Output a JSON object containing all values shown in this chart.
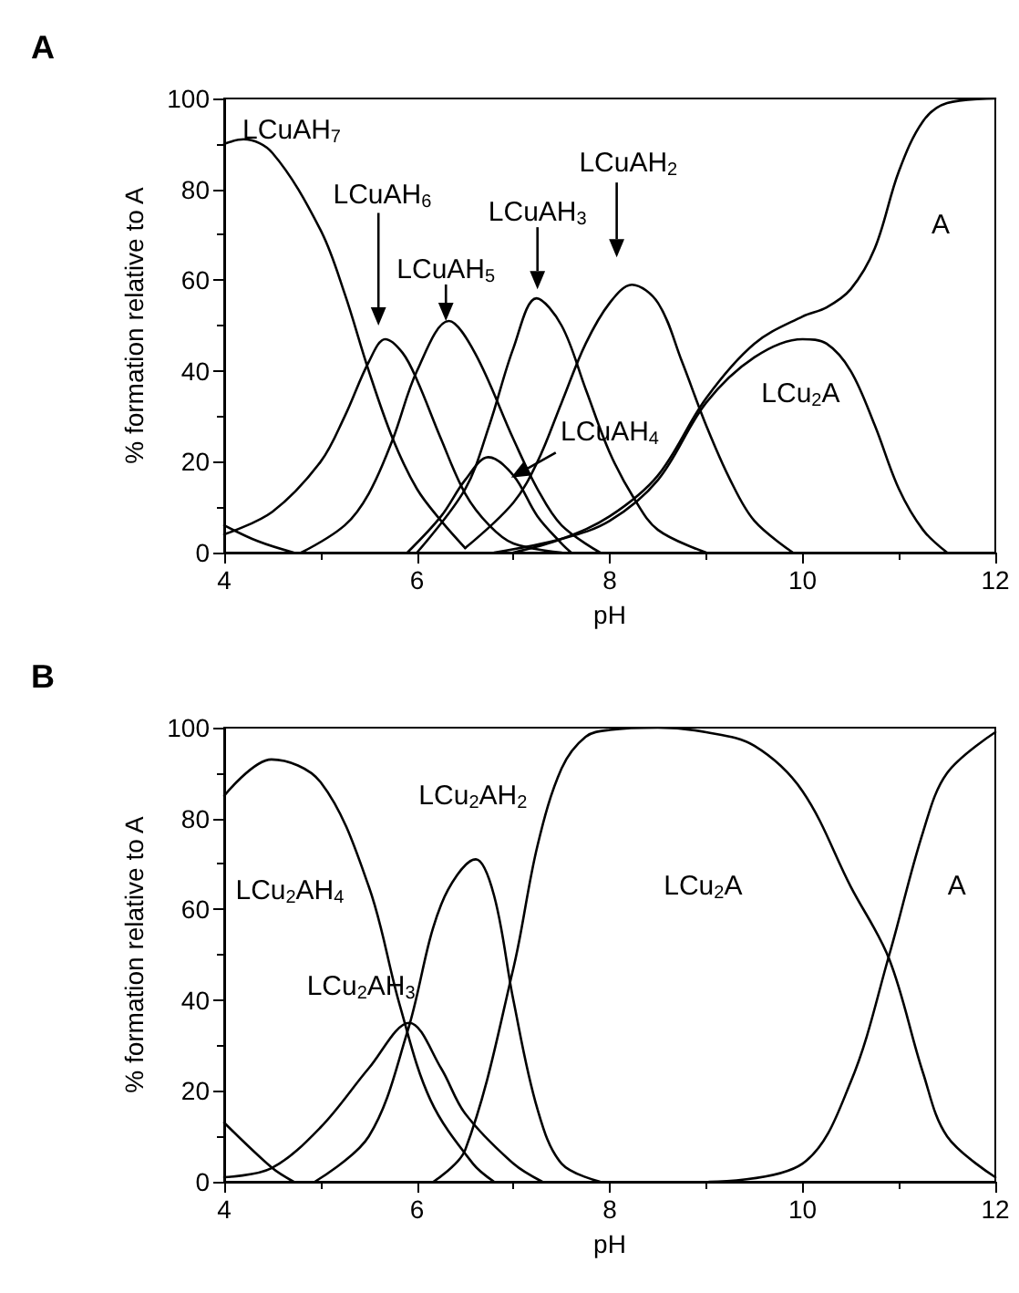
{
  "chart_data": [
    {
      "type": "line",
      "title": "A",
      "xlabel": "pH",
      "ylabel": "% formation relative to A",
      "xlim": [
        4,
        12
      ],
      "xticks": [
        4,
        6,
        8,
        10,
        12
      ],
      "ylim": [
        0,
        100
      ],
      "yticks": [
        0,
        20,
        40,
        60,
        80,
        100
      ],
      "marker": "none",
      "line_style": "solid",
      "series": [
        {
          "color": "#000000",
          "x": [
            4,
            4.35,
            4.72
          ],
          "values": [
            6,
            2.5,
            0
          ]
        },
        {
          "color": "#000000",
          "x": [
            4,
            4.2,
            4.5,
            5,
            5.25,
            5.5,
            5.75,
            6,
            6.25,
            6.5
          ],
          "values": [
            90,
            91,
            88,
            71,
            57,
            40,
            25,
            14,
            7,
            1
          ]
        },
        {
          "color": "#000000",
          "x": [
            4,
            4.5,
            5,
            5.25,
            5.5,
            5.67,
            5.85,
            6,
            6.25,
            6.5,
            6.75,
            7,
            7.5
          ],
          "values": [
            4,
            9,
            20,
            30,
            42,
            47,
            44,
            38,
            25,
            13,
            6,
            2,
            0
          ]
        },
        {
          "color": "#000000",
          "x": [
            4.8,
            5.25,
            5.5,
            5.75,
            6,
            6.33,
            6.6,
            7,
            7.25,
            7.5,
            7.9
          ],
          "values": [
            0,
            6,
            13,
            25,
            40,
            51,
            44,
            25,
            14,
            6,
            0
          ]
        },
        {
          "color": "#000000",
          "x": [
            5.9,
            6.25,
            6.5,
            6.74,
            7,
            7.25,
            7.5,
            7.6
          ],
          "values": [
            0,
            8,
            16,
            21,
            17,
            8,
            2,
            0
          ]
        },
        {
          "color": "#000000",
          "x": [
            6,
            6.5,
            6.75,
            7,
            7.24,
            7.5,
            7.75,
            8,
            8.25,
            8.5,
            9
          ],
          "values": [
            0,
            14,
            28,
            45,
            56,
            50,
            36,
            22,
            12,
            5,
            0
          ]
        },
        {
          "color": "#000000",
          "x": [
            6.5,
            7,
            7.25,
            7.5,
            7.75,
            8,
            8.23,
            8.5,
            8.75,
            9,
            9.25,
            9.5,
            9.9
          ],
          "values": [
            1,
            11,
            20,
            33,
            46,
            55,
            59,
            55,
            42,
            28,
            16,
            7,
            0
          ]
        },
        {
          "color": "#000000",
          "x": [
            6.8,
            7.5,
            8,
            8.5,
            9,
            9.5,
            10,
            10.25,
            10.5,
            10.75,
            11,
            11.25,
            11.5
          ],
          "values": [
            0,
            3,
            7,
            16,
            33,
            43,
            47,
            46,
            40,
            28,
            14,
            5,
            0
          ]
        },
        {
          "color": "#000000",
          "x": [
            7,
            7.5,
            8,
            8.5,
            9,
            9.5,
            10,
            10.25,
            10.5,
            10.75,
            11,
            11.25,
            11.5,
            12
          ],
          "values": [
            0,
            3,
            8,
            17,
            34,
            46,
            52,
            54,
            58,
            67,
            84,
            95,
            99,
            100
          ]
        }
      ],
      "annotations": [
        "LCuAH$_{7}$",
        "LCuAH$_{6}$",
        {
          "text": "LCuAH$_{5}$",
          "x": 6.3,
          "y": 51
        },
        {
          "text": "LCuAH$_{3}$",
          "x": 7.25,
          "y": 58
        },
        "LCuAH$_{2}$",
        "LCuAH$_{4}$",
        "LCu$_{2}$A",
        "A"
      ]
    },
    {
      "type": "line",
      "title": "B",
      "xlabel": "pH",
      "ylabel": "% formation relative to A",
      "xlim": [
        4,
        12
      ],
      "xticks": [
        4,
        6,
        8,
        10,
        12
      ],
      "ylim": [
        0,
        100
      ],
      "yticks": [
        0,
        20,
        40,
        60,
        80,
        100
      ],
      "marker": "none",
      "line_style": "solid",
      "series": [
        {
          "color": "#000000",
          "x": [
            4,
            4.5,
            4.72
          ],
          "values": [
            13,
            3,
            0
          ]
        },
        {
          "color": "#000000",
          "x": [
            4,
            4.49,
            5,
            5.5,
            5.82,
            6.14,
            6.58,
            6.8
          ],
          "values": [
            85,
            93,
            88,
            65,
            39,
            18,
            4,
            0
          ]
        },
        {
          "color": "#000000",
          "x": [
            4,
            4.49,
            5,
            5.5,
            5.92,
            6.25,
            6.5,
            7,
            7.3
          ],
          "values": [
            1,
            3,
            12,
            25,
            35,
            25,
            15,
            4,
            0
          ]
        },
        {
          "color": "#000000",
          "x": [
            4.94,
            5.5,
            5.9,
            6.25,
            6.61,
            6.8,
            7,
            7.25,
            7.5,
            7.9
          ],
          "values": [
            0,
            10,
            33,
            61,
            71,
            63,
            40,
            16,
            4,
            0
          ]
        },
        {
          "color": "#000000",
          "x": [
            6.17,
            6.5,
            7,
            7.25,
            7.5,
            7.75,
            8,
            8.5,
            9,
            9.5,
            10,
            10.5,
            10.9,
            11.25,
            11.5,
            12
          ],
          "values": [
            0,
            7,
            47,
            74,
            91,
            98,
            99.5,
            100,
            99,
            96,
            86,
            65,
            49,
            24,
            10,
            1
          ]
        },
        {
          "color": "#000000",
          "x": [
            9.03,
            10,
            10.5,
            10.9,
            11.25,
            11.5,
            12
          ],
          "values": [
            0,
            4,
            22,
            50,
            77,
            90,
            99
          ]
        }
      ],
      "annotations": [
        "LCu$_{2}$AH$_{4}$",
        {
          "text": "LCu$_{2}$AH$_{3}$",
          "x": 5.76,
          "y": 43
        },
        "LCu$_{2}$AH$_{2}$",
        "LCu$_{2}$A",
        "A"
      ]
    }
  ]
}
